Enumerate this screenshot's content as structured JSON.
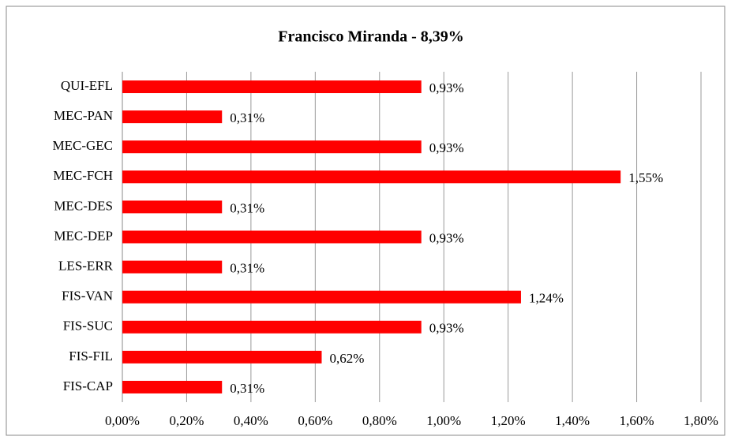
{
  "chart_data": {
    "type": "hbar",
    "title": "Francisco Miranda - 8,39%",
    "categories": [
      "QUI-EFL",
      "MEC-PAN",
      "MEC-GEC",
      "MEC-FCH",
      "MEC-DES",
      "MEC-DEP",
      "LES-ERR",
      "FIS-VAN",
      "FIS-SUC",
      "FIS-FIL",
      "FIS-CAP"
    ],
    "values": [
      0.93,
      0.31,
      0.93,
      1.55,
      0.31,
      0.93,
      0.31,
      1.24,
      0.93,
      0.62,
      0.31
    ],
    "value_labels": [
      "0,93%",
      "0,31%",
      "0,93%",
      "1,55%",
      "0,31%",
      "0,93%",
      "0,31%",
      "1,24%",
      "0,93%",
      "0,62%",
      "0,31%"
    ],
    "color": "#ff0000",
    "xlim": [
      0,
      1.8
    ],
    "xticks": [
      {
        "value": 0,
        "label": "0,00%"
      },
      {
        "value": 0.2,
        "label": "0,20%"
      },
      {
        "value": 0.4,
        "label": "0,40%"
      },
      {
        "value": 0.6,
        "label": "0,60%"
      },
      {
        "value": 0.8,
        "label": "0,80%"
      },
      {
        "value": 1.0,
        "label": "1,00%"
      },
      {
        "value": 1.2,
        "label": "1,20%"
      },
      {
        "value": 1.4,
        "label": "1,40%"
      },
      {
        "value": 1.6,
        "label": "1,60%"
      },
      {
        "value": 1.8,
        "label": "1,80%"
      }
    ],
    "grid": true
  }
}
